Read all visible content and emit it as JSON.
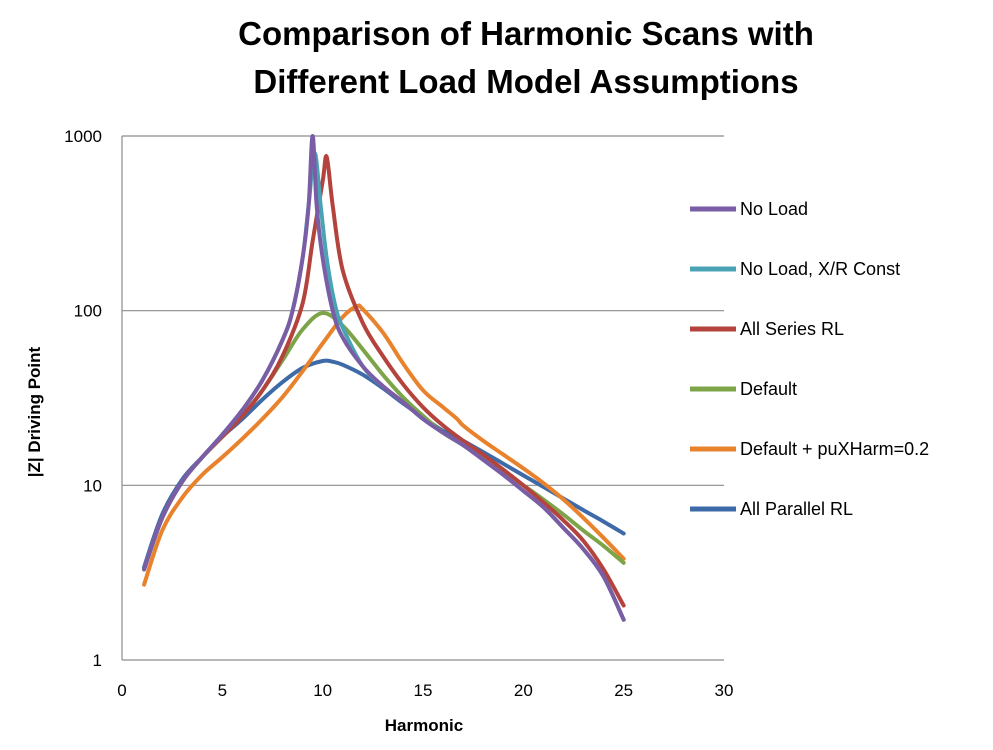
{
  "chart_data": {
    "type": "line",
    "title_line1": "Comparison of Harmonic Scans with",
    "title_line2": "Different Load Model Assumptions",
    "xlabel": "Harmonic",
    "ylabel": "|Z| Driving Point",
    "xlim": [
      0,
      30
    ],
    "ylim": [
      1,
      1000
    ],
    "yscale": "log",
    "x_ticks": [
      0,
      5,
      10,
      15,
      20,
      25,
      30
    ],
    "x_tick_labels": [
      "0",
      "5",
      "10",
      "15",
      "20",
      "25",
      "30"
    ],
    "y_ticks": [
      1,
      10,
      100,
      1000
    ],
    "y_tick_labels": [
      "1",
      "10",
      "100",
      "1000"
    ],
    "grid": "horizontal",
    "legend_position": "right",
    "series": [
      {
        "name": "No Load",
        "color": "#7a5da5",
        "points": [
          [
            1.1,
            3.3
          ],
          [
            2,
            6.5
          ],
          [
            3,
            10.5
          ],
          [
            4,
            14.5
          ],
          [
            5,
            19.5
          ],
          [
            6,
            27
          ],
          [
            7,
            40
          ],
          [
            8,
            68
          ],
          [
            8.5,
            100
          ],
          [
            9,
            200
          ],
          [
            9.3,
            400
          ],
          [
            9.5,
            1000
          ],
          [
            9.7,
            400
          ],
          [
            10,
            200
          ],
          [
            10.5,
            100
          ],
          [
            11,
            70
          ],
          [
            12,
            48
          ],
          [
            13,
            37
          ],
          [
            14,
            30
          ],
          [
            15,
            24
          ],
          [
            16,
            20
          ],
          [
            17,
            17
          ],
          [
            18,
            14
          ],
          [
            19,
            11.5
          ],
          [
            20,
            9.3
          ],
          [
            21,
            7.5
          ],
          [
            22,
            5.7
          ],
          [
            23,
            4.3
          ],
          [
            24,
            3.0
          ],
          [
            25,
            1.7
          ]
        ]
      },
      {
        "name": "No Load, X/R Const",
        "color": "#4aa3b5",
        "points": [
          [
            1.1,
            3.3
          ],
          [
            2,
            6.5
          ],
          [
            3,
            10.5
          ],
          [
            4,
            14.5
          ],
          [
            5,
            19.5
          ],
          [
            6,
            27
          ],
          [
            7,
            40
          ],
          [
            8,
            68
          ],
          [
            8.5,
            100
          ],
          [
            9,
            200
          ],
          [
            9.3,
            400
          ],
          [
            9.6,
            800
          ],
          [
            9.9,
            400
          ],
          [
            10.2,
            200
          ],
          [
            10.6,
            110
          ],
          [
            11,
            80
          ],
          [
            12,
            48
          ],
          [
            13,
            37
          ],
          [
            14,
            30
          ],
          [
            15,
            24
          ],
          [
            16,
            20
          ],
          [
            17,
            17
          ],
          [
            18,
            14
          ],
          [
            19,
            11.5
          ],
          [
            20,
            9.3
          ],
          [
            21,
            7.5
          ],
          [
            22,
            5.7
          ],
          [
            23,
            4.3
          ],
          [
            24,
            3.0
          ],
          [
            25,
            1.7
          ]
        ]
      },
      {
        "name": "All Series RL",
        "color": "#b4433d",
        "points": [
          [
            1.1,
            3.3
          ],
          [
            2,
            6.5
          ],
          [
            3,
            10.5
          ],
          [
            4,
            14.5
          ],
          [
            5,
            19
          ],
          [
            6,
            25
          ],
          [
            7,
            35
          ],
          [
            8,
            55
          ],
          [
            9,
            110
          ],
          [
            9.5,
            250
          ],
          [
            10,
            550
          ],
          [
            10.2,
            760
          ],
          [
            10.5,
            400
          ],
          [
            11,
            170
          ],
          [
            12,
            85
          ],
          [
            13,
            55
          ],
          [
            14,
            38
          ],
          [
            15,
            28
          ],
          [
            16,
            22
          ],
          [
            17,
            18
          ],
          [
            18,
            15
          ],
          [
            19,
            12.3
          ],
          [
            20,
            10
          ],
          [
            21,
            8
          ],
          [
            22,
            6.3
          ],
          [
            23,
            4.8
          ],
          [
            24,
            3.3
          ],
          [
            25,
            2.05
          ]
        ]
      },
      {
        "name": "Default",
        "color": "#7ea44a",
        "points": [
          [
            1.1,
            3.3
          ],
          [
            2,
            6.5
          ],
          [
            3,
            10.5
          ],
          [
            4,
            14.5
          ],
          [
            5,
            19
          ],
          [
            6,
            25
          ],
          [
            7,
            35
          ],
          [
            8,
            52
          ],
          [
            9,
            78
          ],
          [
            10,
            97
          ],
          [
            11,
            82
          ],
          [
            12,
            60
          ],
          [
            13,
            43
          ],
          [
            14,
            32
          ],
          [
            15,
            25
          ],
          [
            16,
            20
          ],
          [
            17,
            17
          ],
          [
            18,
            14.3
          ],
          [
            19,
            12
          ],
          [
            20,
            10
          ],
          [
            21,
            8.3
          ],
          [
            22,
            6.8
          ],
          [
            23,
            5.5
          ],
          [
            24,
            4.5
          ],
          [
            25,
            3.6
          ]
        ]
      },
      {
        "name": "Default + puXHarm=0.2",
        "color": "#e8822c",
        "points": [
          [
            1.1,
            2.7
          ],
          [
            2,
            5.5
          ],
          [
            3,
            8.5
          ],
          [
            4,
            11.5
          ],
          [
            5,
            14.5
          ],
          [
            6,
            18.5
          ],
          [
            7,
            24
          ],
          [
            8,
            32
          ],
          [
            9,
            45
          ],
          [
            10,
            65
          ],
          [
            11,
            92
          ],
          [
            11.7,
            106
          ],
          [
            12,
            102
          ],
          [
            13,
            75
          ],
          [
            14,
            50
          ],
          [
            15,
            35
          ],
          [
            16,
            28
          ],
          [
            16.7,
            24
          ],
          [
            17,
            22
          ],
          [
            18,
            18
          ],
          [
            19,
            15
          ],
          [
            20,
            12.5
          ],
          [
            21,
            10.3
          ],
          [
            22,
            8.3
          ],
          [
            23,
            6.5
          ],
          [
            24,
            5
          ],
          [
            25,
            3.8
          ]
        ]
      },
      {
        "name": "All Parallel RL",
        "color": "#3f6aa8",
        "points": [
          [
            1.1,
            3.4
          ],
          [
            2,
            6.8
          ],
          [
            3,
            10.8
          ],
          [
            4,
            14.5
          ],
          [
            5,
            19
          ],
          [
            6,
            24
          ],
          [
            7,
            31
          ],
          [
            8,
            39
          ],
          [
            9,
            47
          ],
          [
            10,
            51.5
          ],
          [
            10.5,
            51
          ],
          [
            11,
            49
          ],
          [
            12,
            43
          ],
          [
            13,
            36
          ],
          [
            14,
            29.5
          ],
          [
            15,
            24.5
          ],
          [
            16,
            20.5
          ],
          [
            16.7,
            19
          ],
          [
            17,
            18
          ],
          [
            18,
            15.5
          ],
          [
            19,
            13.3
          ],
          [
            20,
            11.4
          ],
          [
            21,
            9.8
          ],
          [
            22,
            8.4
          ],
          [
            23,
            7.2
          ],
          [
            24,
            6.2
          ],
          [
            25,
            5.3
          ]
        ]
      }
    ]
  }
}
